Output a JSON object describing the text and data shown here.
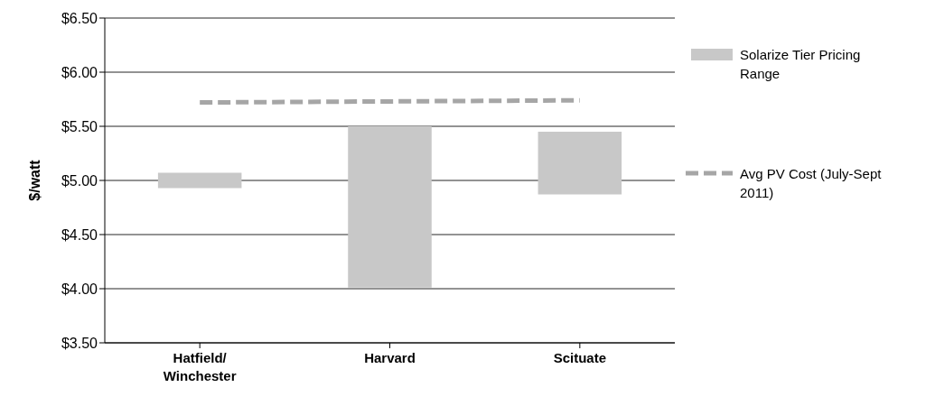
{
  "chart_data": {
    "type": "bar",
    "ylabel": "$/watt",
    "categories": [
      "Hatfield/ Winchester",
      "Harvard",
      "Scituate"
    ],
    "series": [
      {
        "name": "Solarize Tier Pricing Range",
        "color": "#c8c8c8",
        "base": [
          4.93,
          4.01,
          4.87
        ],
        "values": [
          0.14,
          1.49,
          0.58
        ]
      },
      {
        "name": "Avg PV Cost (July-Sept 2011)",
        "type": "line",
        "color": "#a6a6a6",
        "values": [
          5.72,
          5.73,
          5.74
        ],
        "line_style": "dashed"
      }
    ],
    "ylim": [
      3.5,
      6.5
    ],
    "yticks": [
      {
        "value": 3.5,
        "label": "$3.50"
      },
      {
        "value": 4,
        "label": "$4.00"
      },
      {
        "value": 4.5,
        "label": "$4.50"
      },
      {
        "value": 5,
        "label": "$5.00"
      },
      {
        "value": 5.5,
        "label": "$5.50"
      },
      {
        "value": 6,
        "label": "$6.00"
      },
      {
        "value": 6.5,
        "label": "$6.50"
      }
    ],
    "grid": "y",
    "legend": "right"
  }
}
